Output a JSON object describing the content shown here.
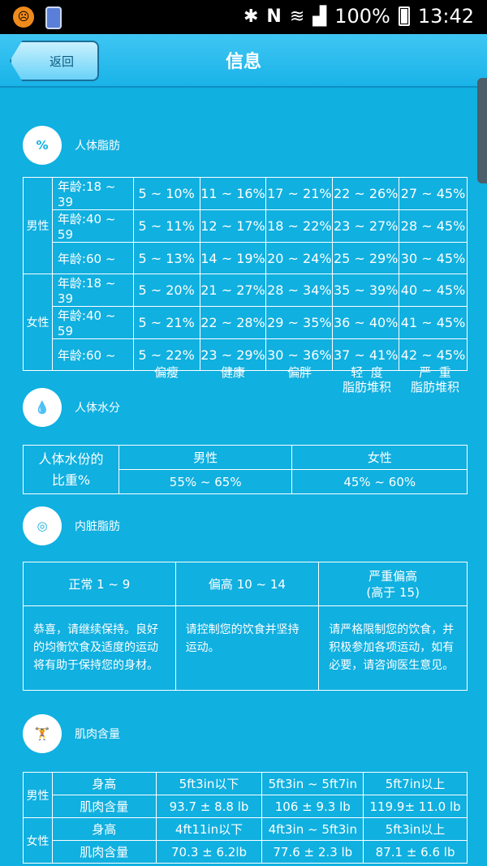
{
  "status_bar": {
    "battery": "100%",
    "time": "13:42",
    "notification_letter": "N"
  },
  "header": {
    "back_label": "返回",
    "title": "信息"
  },
  "body_fat": {
    "label": "人体脂肪",
    "icon_symbol": "%",
    "male_label": "男性",
    "female_label": "女性",
    "male_rows": [
      {
        "age": "年龄:18 ~ 39",
        "values": [
          "5 ~ 10%",
          "11 ~ 16%",
          "17 ~ 21%",
          "22 ~ 26%",
          "27 ~ 45%"
        ]
      },
      {
        "age": "年龄:40 ~ 59",
        "values": [
          "5 ~ 11%",
          "12 ~ 17%",
          "18 ~ 22%",
          "23 ~ 27%",
          "28 ~ 45%"
        ]
      },
      {
        "age": "年龄:60 ~",
        "values": [
          "5 ~ 13%",
          "14 ~ 19%",
          "20 ~ 24%",
          "25 ~ 29%",
          "30 ~ 45%"
        ]
      }
    ],
    "female_rows": [
      {
        "age": "年龄:18 ~ 39",
        "values": [
          "5 ~ 20%",
          "21 ~ 27%",
          "28 ~ 34%",
          "35 ~ 39%",
          "40 ~ 45%"
        ]
      },
      {
        "age": "年龄:40 ~ 59",
        "values": [
          "5 ~ 21%",
          "22 ~ 28%",
          "29 ~ 35%",
          "36 ~ 40%",
          "41 ~ 45%"
        ]
      },
      {
        "age": "年龄:60 ~",
        "values": [
          "5 ~ 22%",
          "23 ~ 29%",
          "30 ~ 36%",
          "37 ~ 41%",
          "42 ~ 45%"
        ]
      }
    ],
    "legend": [
      "偏瘦",
      "健康",
      "偏胖",
      "轻  度\n脂肪堆积",
      "严  重\n脂肪堆积"
    ]
  },
  "body_water": {
    "label": "人体水分",
    "row_label": "人体水份的\n比重%",
    "male_label": "男性",
    "female_label": "女性",
    "male_value": "55% ~ 65%",
    "female_value": "45% ~ 60%"
  },
  "visceral_fat": {
    "label": "内脏脂肪",
    "levels": [
      "正常  1 ~ 9",
      "偏高  10 ~ 14",
      "严重偏高\n(高于 15)"
    ],
    "advice": [
      "恭喜，请继续保持。良好的均衡饮食及适度的运动将有助于保持您的身材。",
      "请控制您的饮食并坚持运动。",
      "请严格限制您的饮食，并积极参加各项运动，如有必要，请咨询医生意见。"
    ]
  },
  "muscle": {
    "label": "肌肉含量",
    "male_label": "男性",
    "female_label": "女性",
    "height_label": "身高",
    "muscle_label": "肌肉含量",
    "male_heights": [
      "5ft3in以下",
      "5ft3in ~ 5ft7in",
      "5ft7in以上"
    ],
    "male_muscle": [
      "93.7 ± 8.8 lb",
      "106 ± 9.3 lb",
      "119.9± 11.0 lb"
    ],
    "female_heights": [
      "4ft11in以下",
      "4ft3in ~ 5ft3in",
      "5ft3in以上"
    ],
    "female_muscle": [
      "70.3 ± 6.2lb",
      "77.6 ± 2.3 lb",
      "87.1 ± 6.6 lb"
    ]
  }
}
